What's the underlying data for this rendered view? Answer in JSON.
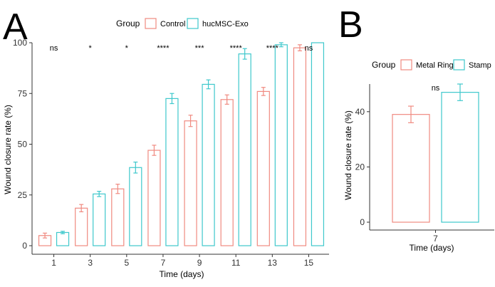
{
  "colors": {
    "control": "#f08a80",
    "exo": "#3ec8cc",
    "axis": "#333333"
  },
  "chart_data": [
    {
      "panel": "A",
      "type": "bar",
      "xlabel": "Time (days)",
      "ylabel": "Wound closure rate (%)",
      "ylim": [
        0,
        100
      ],
      "yticks": [
        0,
        25,
        50,
        75,
        100
      ],
      "categories": [
        "1",
        "3",
        "5",
        "7",
        "9",
        "11",
        "13",
        "15"
      ],
      "legend": {
        "title": "Group",
        "position": "top"
      },
      "series": [
        {
          "name": "Control",
          "values": [
            5,
            18.5,
            28,
            47,
            61.5,
            72,
            76,
            97.5
          ],
          "errors": [
            1.2,
            1.8,
            2.3,
            2.5,
            2.8,
            2.3,
            2.0,
            1.5
          ]
        },
        {
          "name": "hucMSC-Exo",
          "values": [
            6.5,
            25.5,
            38.5,
            72.5,
            79.5,
            94.5,
            99,
            100
          ],
          "errors": [
            0.6,
            1.3,
            2.7,
            2.5,
            2.2,
            2.6,
            1.0,
            0
          ]
        }
      ],
      "significance": [
        "ns",
        "*",
        "*",
        "****",
        "***",
        "****",
        "****",
        "ns"
      ]
    },
    {
      "panel": "B",
      "type": "bar",
      "xlabel": "Time (days)",
      "ylabel": "Wound closure rate (%)",
      "ylim": [
        0,
        50
      ],
      "yticks": [
        0,
        20,
        40
      ],
      "categories": [
        "7"
      ],
      "legend": {
        "title": "Group",
        "position": "top"
      },
      "series": [
        {
          "name": "Metal Ring",
          "values": [
            39
          ],
          "errors": [
            3
          ]
        },
        {
          "name": "Stamp",
          "values": [
            47
          ],
          "errors": [
            3
          ]
        }
      ],
      "significance": [
        "ns"
      ]
    }
  ]
}
